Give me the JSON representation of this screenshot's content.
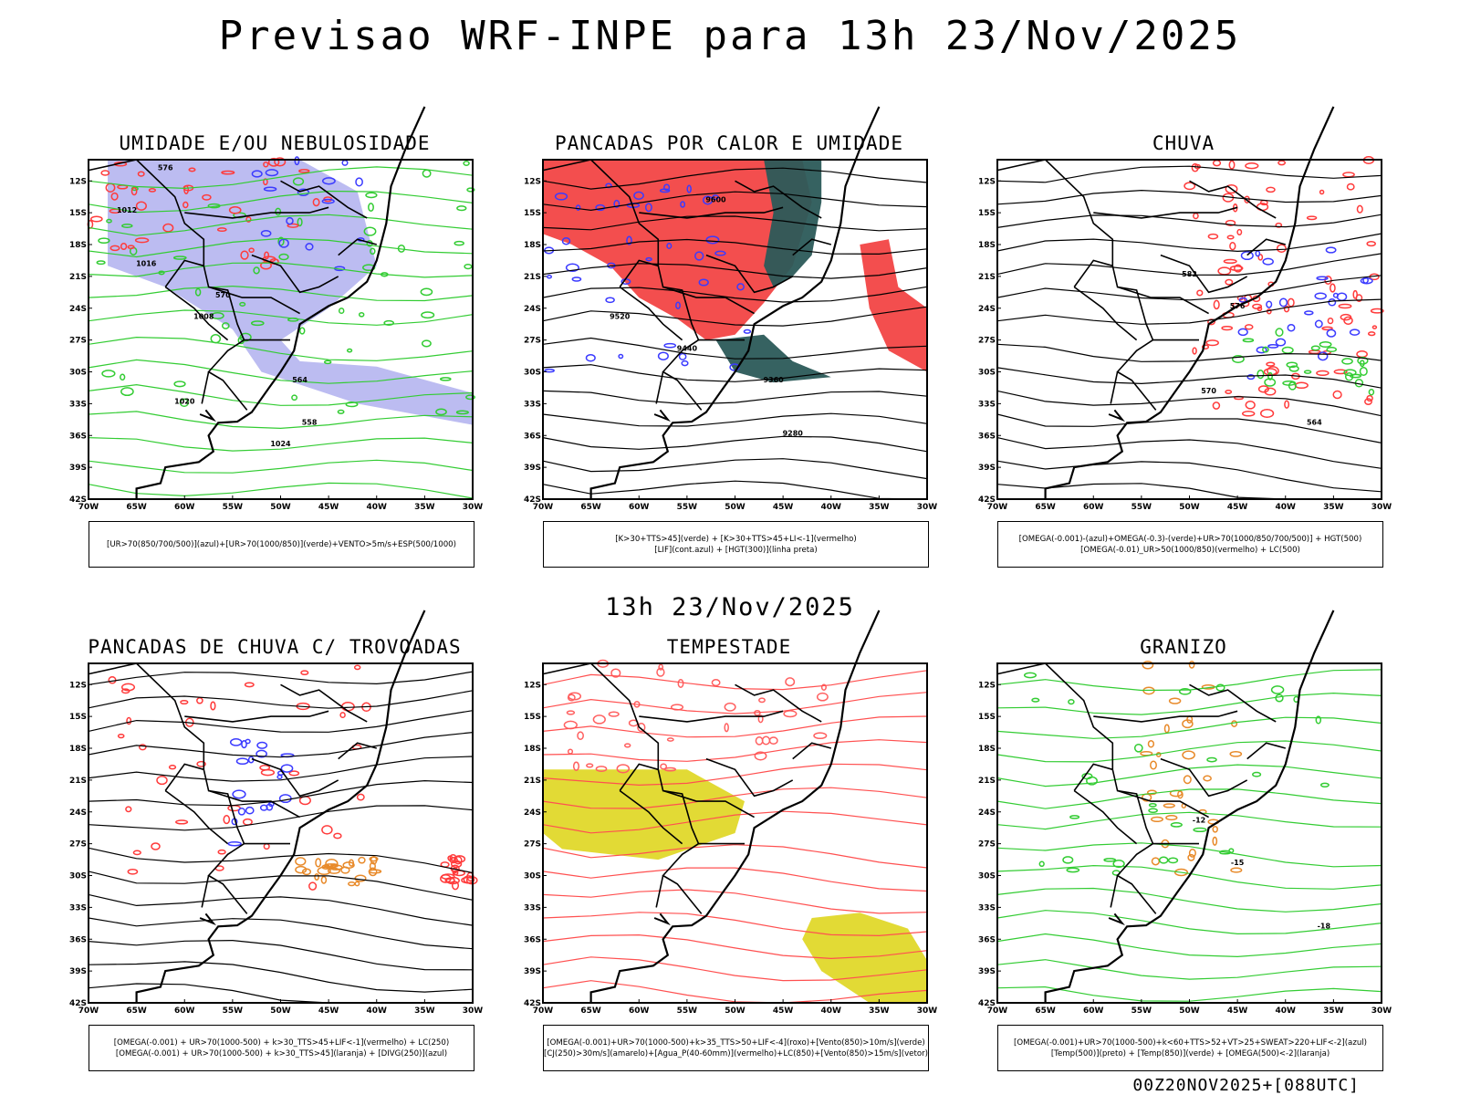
{
  "title": "Previsao WRF-INPE  para 13h 23/Nov/2025",
  "mid_title": "13h 23/Nov/2025",
  "footer": "00Z20NOV2025+[088UTC]",
  "chart_data": [
    {
      "type": "contour_map",
      "title": "UMIDADE E/OU NEBULOSIDADE",
      "legend": [
        "[UR>70(850/700/500)](azul)+[UR>70(1000/850)](verde)+VENTO>5m/s+ESP(500/1000)"
      ],
      "x_ticks": [
        "70W",
        "65W",
        "60W",
        "55W",
        "50W",
        "45W",
        "40W",
        "35W",
        "30W"
      ],
      "y_ticks": [
        "12S",
        "15S",
        "18S",
        "21S",
        "24S",
        "27S",
        "30S",
        "33S",
        "36S",
        "39S",
        "42S"
      ],
      "contour_labels": [
        "1012",
        "1016",
        "1008",
        "1020",
        "1024",
        "576",
        "570",
        "564",
        "558"
      ]
    },
    {
      "type": "contour_map",
      "title": "PANCADAS POR CALOR E UMIDADE",
      "legend": [
        "[K>30+TTS>45](verde) + [K>30+TTS>45+LI<-1](vermelho)",
        "[LIF](cont.azul) + [HGT(300)](linha preta)"
      ],
      "x_ticks": [
        "70W",
        "65W",
        "60W",
        "55W",
        "50W",
        "45W",
        "40W",
        "35W",
        "30W"
      ],
      "y_ticks": [
        "12S",
        "15S",
        "18S",
        "21S",
        "24S",
        "27S",
        "30S",
        "33S",
        "36S",
        "39S",
        "42S"
      ],
      "contour_labels": [
        "9600",
        "9520",
        "9440",
        "9360",
        "9280"
      ]
    },
    {
      "type": "contour_map",
      "title": "CHUVA",
      "legend": [
        "[OMEGA(-0.001)-(azul)+OMEGA(-0.3)-(verde)+UR>70(1000/850/700/500)] + HGT(500)",
        "[OMEGA(-0.01)_UR>50(1000/850)(vermelho) + LC(500)"
      ],
      "x_ticks": [
        "70W",
        "65W",
        "60W",
        "55W",
        "50W",
        "45W",
        "40W",
        "35W",
        "30W"
      ],
      "y_ticks": [
        "12S",
        "15S",
        "18S",
        "21S",
        "24S",
        "27S",
        "30S",
        "33S",
        "36S",
        "39S",
        "42S"
      ],
      "contour_labels": [
        "582",
        "576",
        "570",
        "564"
      ]
    },
    {
      "type": "contour_map",
      "title": "PANCADAS DE CHUVA C/ TROVOADAS",
      "legend": [
        "[OMEGA(-0.001) + UR>70(1000-500) + k>30_TTS>45+LIF<-1](vermelho) + LC(250)",
        "[OMEGA(-0.001) + UR>70(1000-500) + k>30_TTS>45](laranja) + [DIVG(250)](azul)"
      ],
      "x_ticks": [
        "70W",
        "65W",
        "60W",
        "55W",
        "50W",
        "45W",
        "40W",
        "35W",
        "30W"
      ],
      "y_ticks": [
        "12S",
        "15S",
        "18S",
        "21S",
        "24S",
        "27S",
        "30S",
        "33S",
        "36S",
        "39S",
        "42S"
      ],
      "contour_labels": []
    },
    {
      "type": "contour_map",
      "title": "TEMPESTADE",
      "legend": [
        "[OMEGA(-0.001)+UR>70(1000-500)+k>35_TTS>50+LIF<-4](roxo)+[Vento(850)>10m/s](verde)",
        "[CJ(250)>30m/s](amarelo)+[Agua_P(40-60mm)](vermelho)+LC(850)+[Vento(850)>15m/s](vetor)"
      ],
      "x_ticks": [
        "70W",
        "65W",
        "60W",
        "55W",
        "50W",
        "45W",
        "40W",
        "35W",
        "30W"
      ],
      "y_ticks": [
        "12S",
        "15S",
        "18S",
        "21S",
        "24S",
        "27S",
        "30S",
        "33S",
        "36S",
        "39S",
        "42S"
      ],
      "contour_labels": []
    },
    {
      "type": "contour_map",
      "title": "GRANIZO",
      "legend": [
        "[OMEGA(-0.001)+UR>70(1000-500)+k<60+TTS>52+VT>25+SWEAT>220+LIF<-2](azul)",
        "[Temp(500)](preto) + [Temp(850)](verde) + [OMEGA(500)<-2](laranja)"
      ],
      "x_ticks": [
        "70W",
        "65W",
        "60W",
        "55W",
        "50W",
        "45W",
        "40W",
        "35W",
        "30W"
      ],
      "y_ticks": [
        "12S",
        "15S",
        "18S",
        "21S",
        "24S",
        "27S",
        "30S",
        "33S",
        "36S",
        "39S",
        "42S"
      ],
      "contour_labels": [
        "-12",
        "-15",
        "-18"
      ]
    }
  ]
}
